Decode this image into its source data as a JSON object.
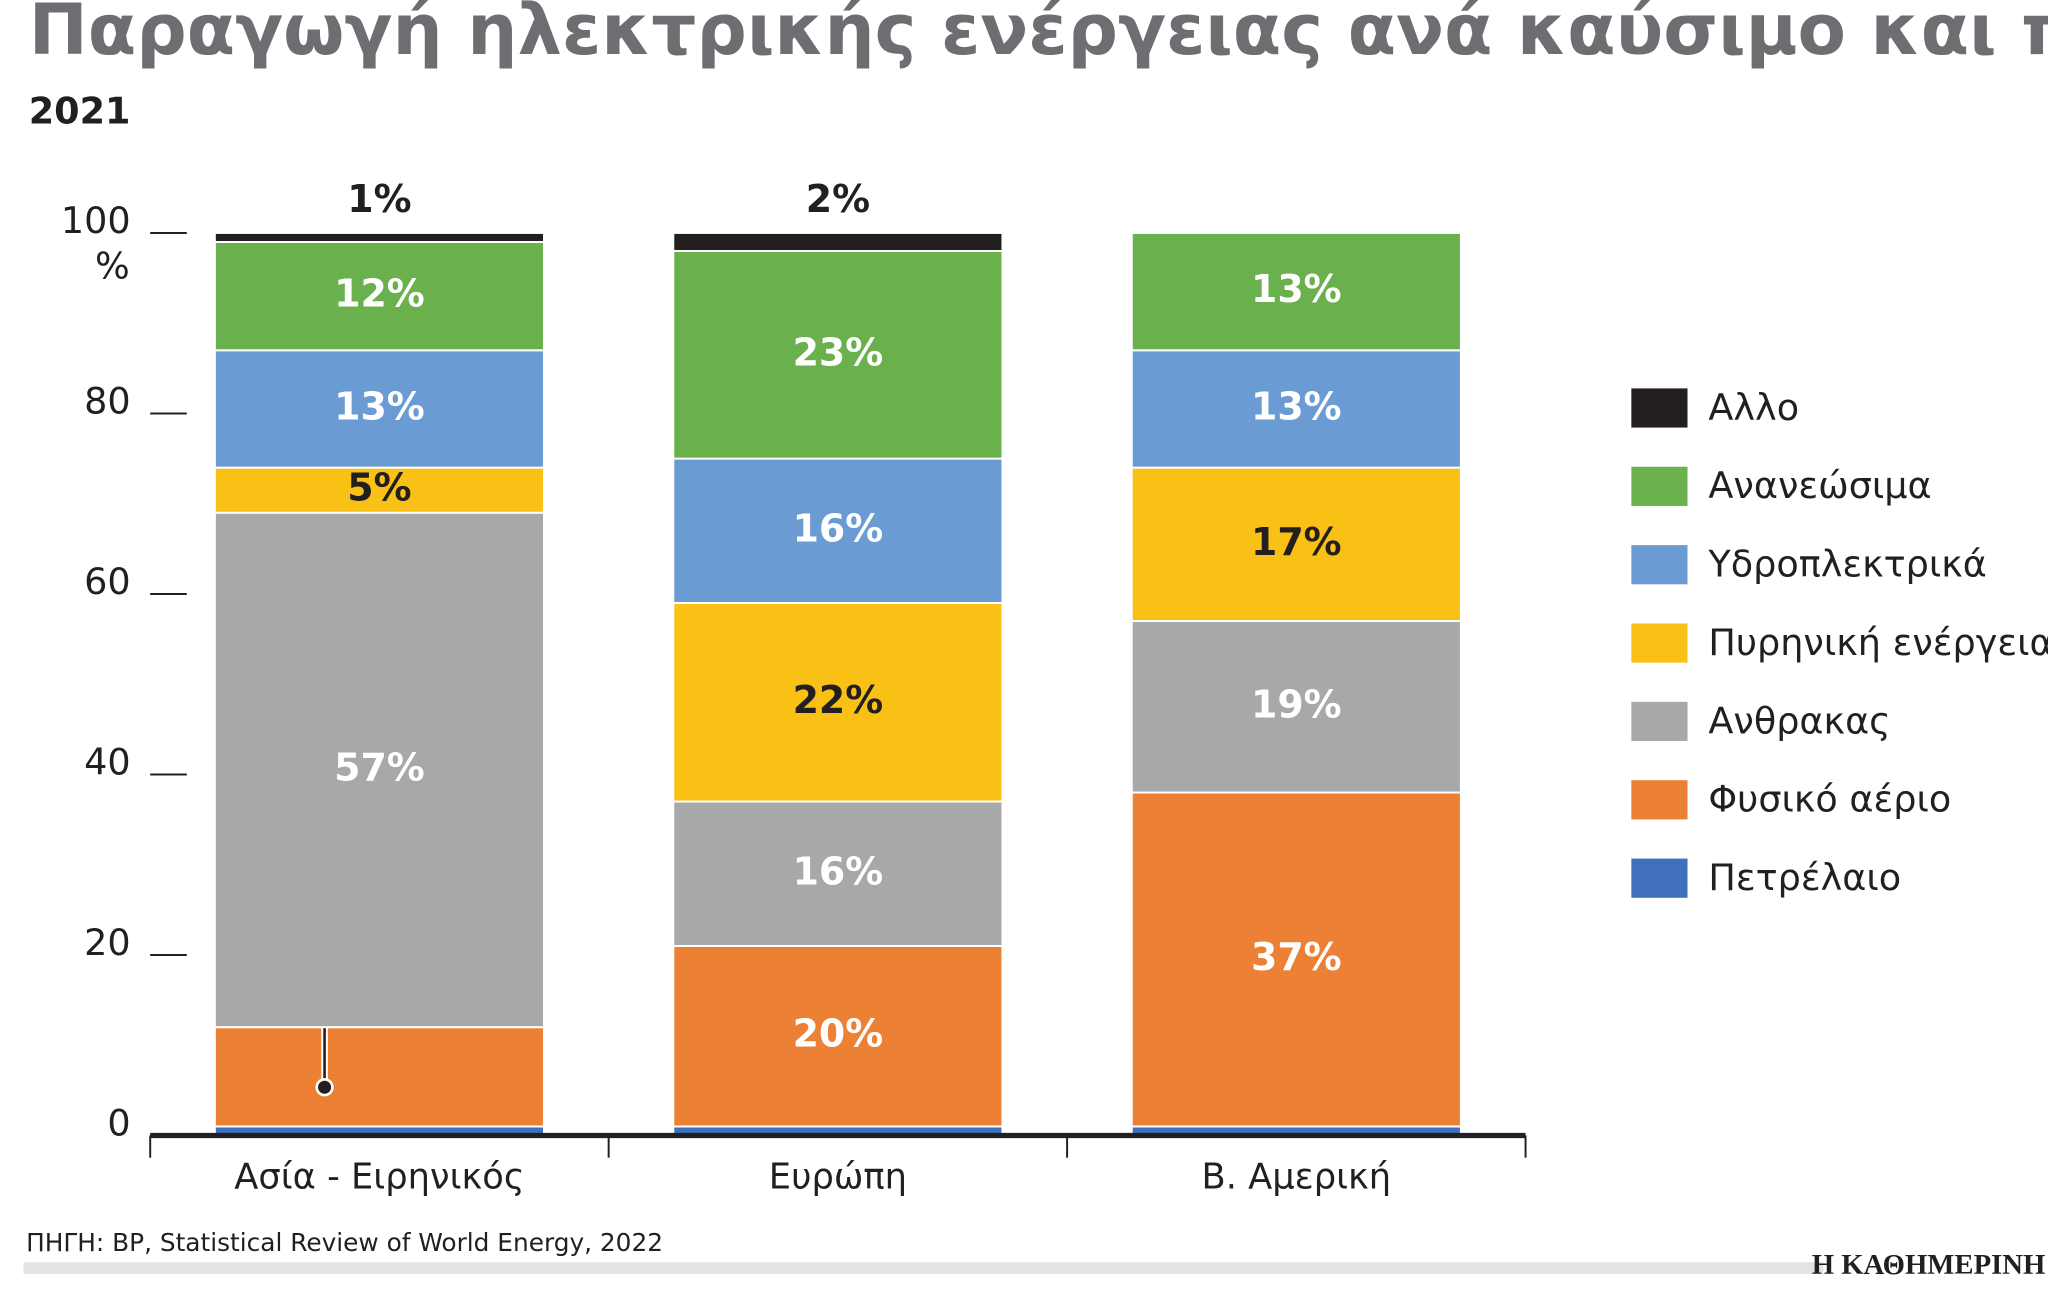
{
  "chart_data": {
    "type": "stacked-bar",
    "title": "Παραγωγή ηλεκτρικής ενέργειας ανά καύσιμο και περιοχή",
    "subtitle": "2021",
    "y_unit": "%",
    "categories": [
      "Ασία - Ειρηνικός",
      "Ευρώπη",
      "Β. Αμερική"
    ],
    "ylim": [
      0,
      100
    ],
    "yticks": [
      0,
      20,
      40,
      60,
      80,
      100
    ],
    "series": [
      {
        "name": "Πετρέλαιο",
        "color": "#3f6fbd",
        "label_color": "#ffffff",
        "values": [
          1,
          1,
          1
        ],
        "value_labels": [
          "1%",
          "1%",
          "1%"
        ]
      },
      {
        "name": "Φυσικό αέριο",
        "color": "#ec8035",
        "label_color": "#ffffff",
        "values": [
          11,
          20,
          37
        ],
        "value_labels": [
          "11%",
          "20%",
          "37%"
        ]
      },
      {
        "name": "Ανθρακας",
        "color": "#a7a8aa",
        "label_color": "#ffffff",
        "values": [
          57,
          16,
          19
        ],
        "value_labels": [
          "57%",
          "16%",
          "19%"
        ]
      },
      {
        "name": "Πυρηνική ενέργεια",
        "color": "#f9c116",
        "label_color": "#231f20",
        "values": [
          5,
          22,
          17
        ],
        "value_labels": [
          "5%",
          "22%",
          "17%"
        ]
      },
      {
        "name": "Υδροπλεκτρικά",
        "color": "#6a9bd3",
        "label_color": "#ffffff",
        "values": [
          13,
          16,
          13
        ],
        "value_labels": [
          "13%",
          "16%",
          "13%"
        ]
      },
      {
        "name": "Ανανεώσιμα",
        "color": "#6ab04c",
        "label_color": "#ffffff",
        "values": [
          12,
          23,
          13
        ],
        "value_labels": [
          "12%",
          "23%",
          "13%"
        ]
      },
      {
        "name": "Αλλο",
        "color": "#231f20",
        "label_color": "#231f20",
        "values": [
          1,
          2,
          null
        ],
        "value_labels": [
          "1%",
          "2%",
          null
        ]
      }
    ],
    "source": "ΠΗΓΗ: BP, Statistical Review of World Energy, 2022",
    "brand": "Η ΚΑΘΗΜΕΡΙΝΗ"
  }
}
